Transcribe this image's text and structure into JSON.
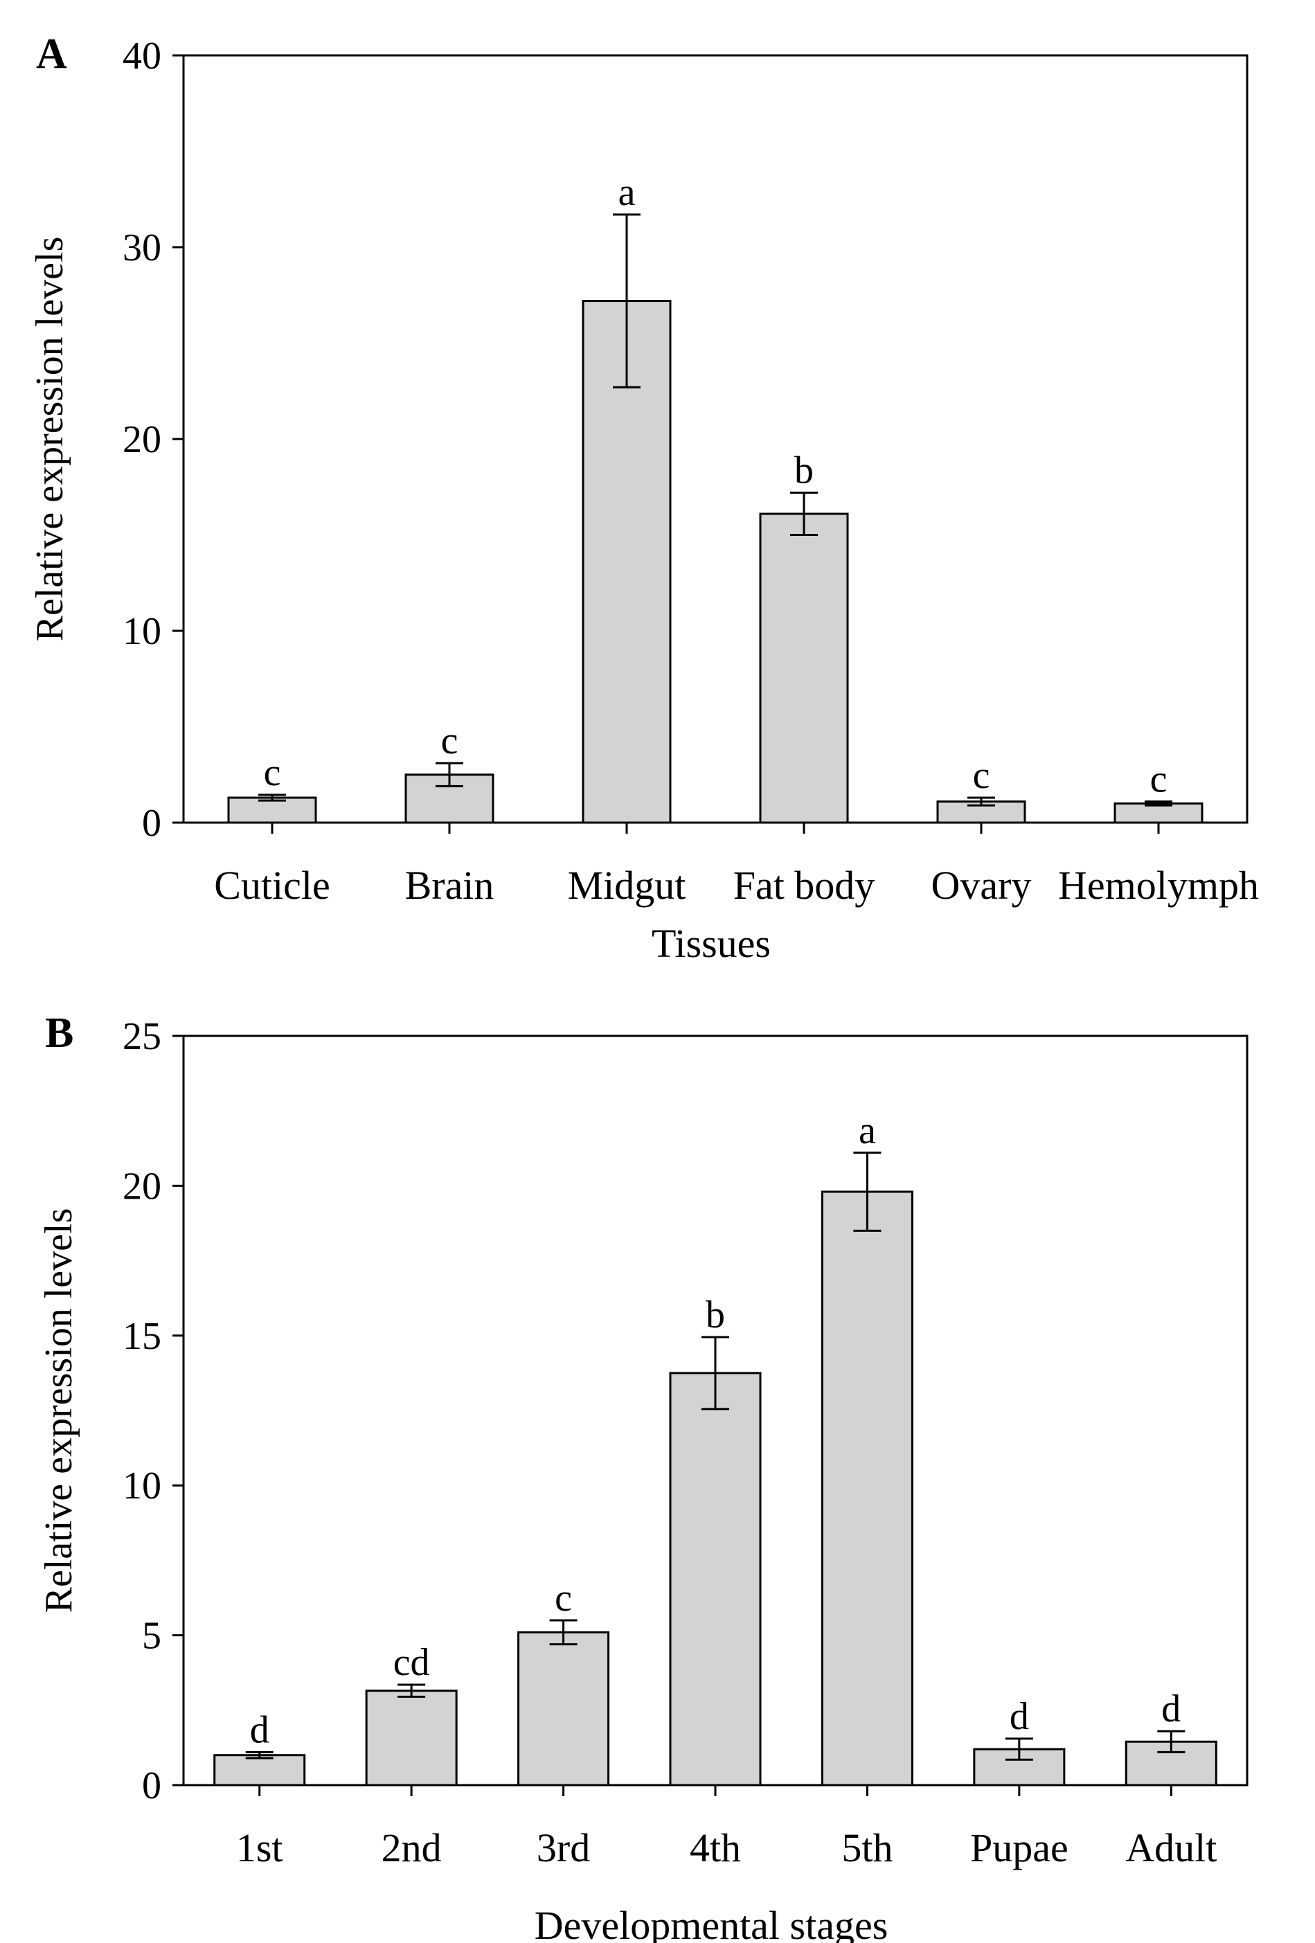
{
  "chart_data": [
    {
      "panel_label": "A",
      "type": "bar",
      "title": "",
      "xlabel": "Tissues",
      "ylabel": "Relative expression levels",
      "ylim": [
        0,
        40
      ],
      "yticks": [
        0,
        10,
        20,
        30,
        40
      ],
      "categories": [
        "Cuticle",
        "Brain",
        "Midgut",
        "Fat body",
        "Ovary",
        "Hemolymph"
      ],
      "values": [
        1.3,
        2.5,
        27.2,
        16.1,
        1.1,
        1.0
      ],
      "errors": [
        0.15,
        0.6,
        4.5,
        1.1,
        0.2,
        0.1
      ],
      "significance": [
        "c",
        "c",
        "a",
        "b",
        "c",
        "c"
      ],
      "bar_color": "#d3d3d3",
      "grid": false
    },
    {
      "panel_label": "B",
      "type": "bar",
      "title": "",
      "xlabel": "Developmental stages",
      "ylabel": "Relative expression levels",
      "ylim": [
        0,
        25
      ],
      "yticks": [
        0,
        5,
        10,
        15,
        20,
        25
      ],
      "categories": [
        "1st",
        "2nd",
        "3rd",
        "4th",
        "5th",
        "Pupae",
        "Adult"
      ],
      "values": [
        1.0,
        3.15,
        5.1,
        13.75,
        19.8,
        1.2,
        1.45
      ],
      "errors": [
        0.1,
        0.2,
        0.4,
        1.2,
        1.3,
        0.35,
        0.35
      ],
      "significance": [
        "d",
        "cd",
        "c",
        "b",
        "a",
        "d",
        "d"
      ],
      "bar_color": "#d3d3d3",
      "grid": false
    }
  ]
}
